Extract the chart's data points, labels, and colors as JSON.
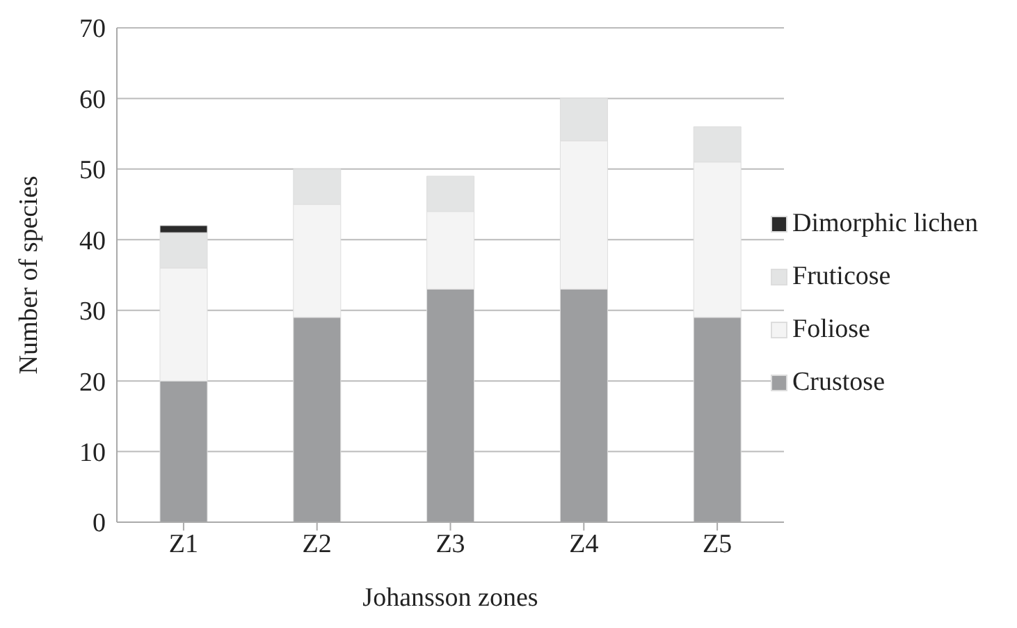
{
  "chart_data": {
    "type": "bar",
    "xlabel": "Johansson zones",
    "ylabel": "Number of species",
    "categories": [
      "Z1",
      "Z2",
      "Z3",
      "Z4",
      "Z5"
    ],
    "stacked": true,
    "series": [
      {
        "name": "Crustose",
        "color": "#9d9ea0",
        "values": [
          20,
          29,
          33,
          33,
          29
        ]
      },
      {
        "name": "Foliose",
        "color": "#f4f4f4",
        "values": [
          16,
          16,
          11,
          21,
          22
        ]
      },
      {
        "name": "Fruticose",
        "color": "#e3e4e4",
        "values": [
          5,
          5,
          5,
          6,
          5
        ]
      },
      {
        "name": "Dimorphic lichen",
        "color": "#2b2b2b",
        "values": [
          1,
          0,
          0,
          0,
          0
        ]
      }
    ],
    "ylim": [
      0,
      70
    ],
    "yticks": [
      0,
      10,
      20,
      30,
      40,
      50,
      60,
      70
    ],
    "grid": "y",
    "legend": "right"
  }
}
